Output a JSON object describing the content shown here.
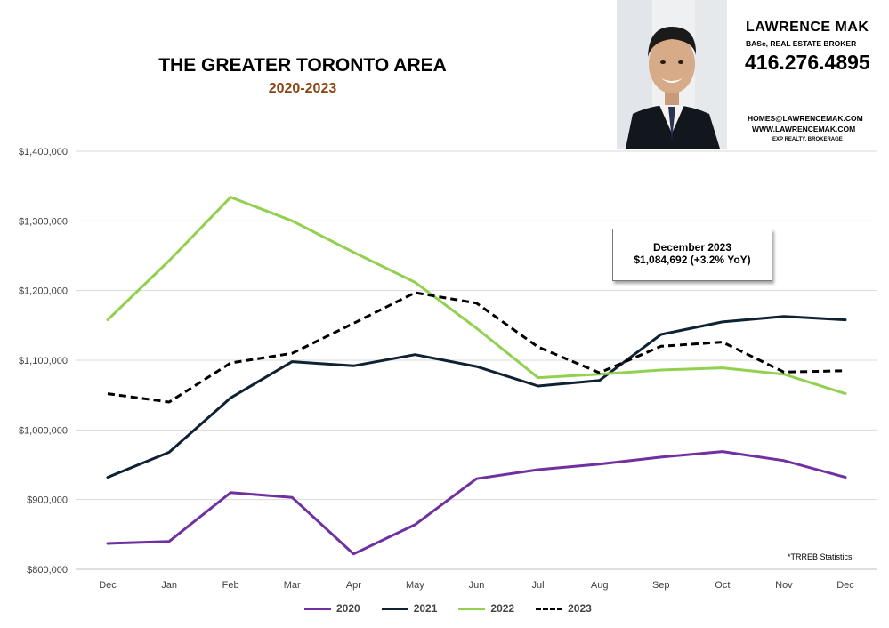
{
  "header": {
    "title": "THE GREATER TORONTO AREA",
    "subtitle": "2020-2023"
  },
  "brand": {
    "name": "LAWRENCE MAK",
    "credentials": "BASc, REAL ESTATE BROKER",
    "phone": "416.276.4895",
    "email": "HOMES@LAWRENCEMAK.COM",
    "website": "WWW.LAWRENCEMAK.COM",
    "brokerage": "EXP REALTY, BROKERAGE"
  },
  "callout": {
    "line1": "December 2023",
    "line2": "$1,084,692  (+3.2%  YoY)"
  },
  "source_note": "*TRREB Statistics",
  "chart_data": {
    "type": "line",
    "title": "THE GREATER TORONTO AREA",
    "subtitle": "2020-2023",
    "categories": [
      "Dec",
      "Jan",
      "Feb",
      "Mar",
      "Apr",
      "May",
      "Jun",
      "Jul",
      "Aug",
      "Sep",
      "Oct",
      "Nov",
      "Dec"
    ],
    "ylim": [
      800000,
      1400000
    ],
    "yticks": [
      800000,
      900000,
      1000000,
      1100000,
      1200000,
      1300000,
      1400000
    ],
    "ytick_labels": [
      "$800,000",
      "$900,000",
      "$1,000,000",
      "$1,100,000",
      "$1,200,000",
      "$1,300,000",
      "$1,400,000"
    ],
    "grid": true,
    "legend_position": "bottom",
    "series": [
      {
        "name": "2020",
        "color": "#7030a0",
        "style": "solid",
        "values": [
          837000,
          840000,
          910000,
          903000,
          822000,
          864000,
          930000,
          943000,
          951000,
          961000,
          969000,
          956000,
          932000
        ]
      },
      {
        "name": "2021",
        "color": "#0e2233",
        "style": "solid",
        "values": [
          932000,
          968000,
          1046000,
          1098000,
          1092000,
          1108000,
          1091000,
          1063000,
          1071000,
          1137000,
          1155000,
          1163000,
          1158000
        ]
      },
      {
        "name": "2022",
        "color": "#92d050",
        "style": "solid",
        "values": [
          1158000,
          1243000,
          1334000,
          1300000,
          1255000,
          1212000,
          1146000,
          1075000,
          1080000,
          1086000,
          1089000,
          1080000,
          1052000
        ]
      },
      {
        "name": "2023",
        "color": "#000000",
        "style": "dashed",
        "values": [
          1052000,
          1040000,
          1096000,
          1110000,
          1153000,
          1197000,
          1182000,
          1119000,
          1082000,
          1120000,
          1126000,
          1083000,
          1085000
        ]
      }
    ]
  }
}
